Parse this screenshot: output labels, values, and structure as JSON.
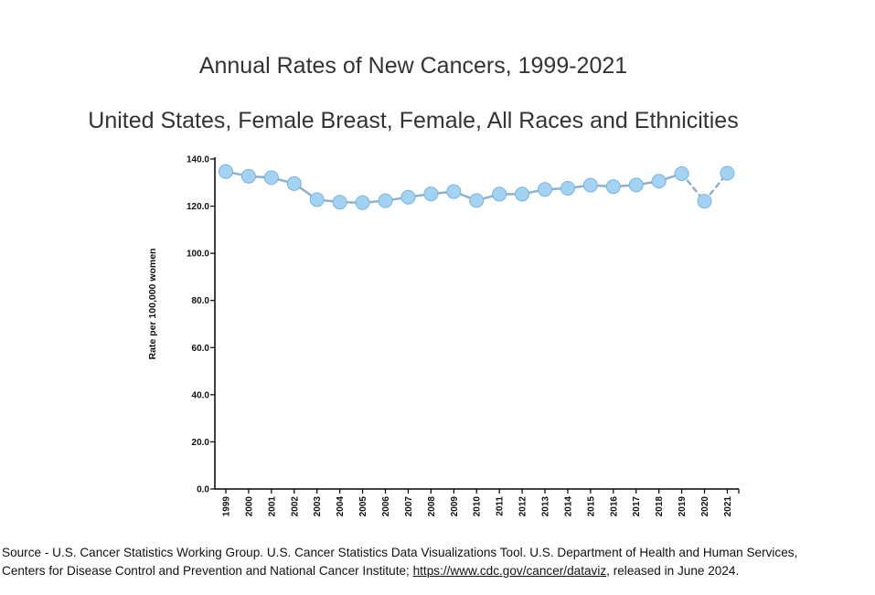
{
  "chart_data": {
    "type": "line",
    "title": "Annual Rates of New Cancers, 1999-2021",
    "subtitle": "United States, Female Breast, Female, All Races and Ethnicities",
    "ylabel": "Rate per 100,000 women",
    "xlabel": "",
    "ylim": [
      0,
      140
    ],
    "y_ticks": [
      "0.0",
      "20.0",
      "40.0",
      "60.0",
      "80.0",
      "100.0",
      "120.0",
      "140.0"
    ],
    "grid": false,
    "categories": [
      "1999",
      "2000",
      "2001",
      "2002",
      "2003",
      "2004",
      "2005",
      "2006",
      "2007",
      "2008",
      "2009",
      "2010",
      "2011",
      "2012",
      "2013",
      "2014",
      "2015",
      "2016",
      "2017",
      "2018",
      "2019",
      "2020",
      "2021"
    ],
    "series": [
      {
        "values": [
          134.7,
          132.7,
          132.1,
          129.6,
          122.8,
          121.7,
          121.5,
          122.3,
          123.8,
          125.2,
          126.2,
          122.4,
          125.1,
          125.1,
          127.1,
          127.6,
          128.9,
          128.3,
          129.0,
          130.6,
          133.8,
          122.1,
          134.0
        ],
        "dashed_segments_after": "2019"
      }
    ],
    "colors": {
      "line": "#8fb0c9",
      "marker_fill": "#a3d2f3",
      "marker_stroke": "#7ab3dd",
      "axis": "#000000"
    }
  },
  "source": {
    "line1": "Source - U.S. Cancer Statistics Working Group. U.S. Cancer Statistics Data Visualizations Tool. U.S. Department of Health and Human Services,",
    "line2_prefix": "Centers for Disease Control and Prevention and National Cancer Institute; ",
    "link": "https://www.cdc.gov/cancer/dataviz",
    "line2_suffix": ", released in June 2024."
  }
}
